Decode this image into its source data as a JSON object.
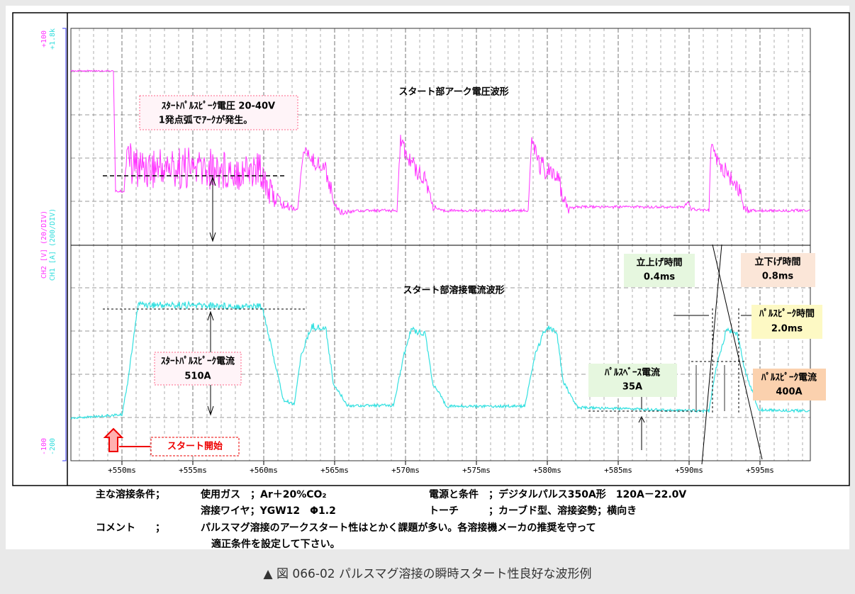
{
  "scope": {
    "ch2_top": "+100",
    "ch1_top": "+1.8k",
    "ch2_axis": "CH2 [V] (20/DIV)",
    "ch1_axis": "CH1 [A] (200/DIV)",
    "ch2_bottom": "-100",
    "ch1_bottom": "-200",
    "x_labels": [
      "+550ms",
      "+555ms",
      "+560ms",
      "+565ms",
      "+570ms",
      "+575ms",
      "+580ms",
      "+585ms",
      "+590ms",
      "+595ms"
    ]
  },
  "annotations": {
    "voltage_title": "スタート部アーク電圧波形",
    "current_title": "スタート部溶接電流波形",
    "start_peak_voltage": [
      "ｽﾀｰﾄﾊﾟﾙｽﾋﾟｰｸ電圧 20-40V",
      "1発点弧でｱｰｸが発生。"
    ],
    "start_peak_current": [
      "ｽﾀｰﾄﾊﾟﾙｽﾋﾟｰｸ電流",
      "510A"
    ],
    "start": "スタート開始",
    "rise_time": [
      "立上げ時間",
      "0.4ms"
    ],
    "fall_time": [
      "立下げ時間",
      "0.8ms"
    ],
    "peak_time": [
      "ﾊﾟﾙｽﾋﾟｰｸ時間",
      "2.0ms"
    ],
    "base_current": [
      "ﾊﾟﾙｽﾍﾞｰｽ電流",
      "35A"
    ],
    "peak_current": [
      "ﾊﾟﾙｽﾋﾟｰｸ電流",
      "400A"
    ]
  },
  "conditions": {
    "main_label": "主な溶接条件；",
    "gas": "使用ガス　；Ar＋20%CO₂",
    "power": "電源と条件　；デジタルパルス350A形　120A－22.0V",
    "wire": "溶接ワイヤ；YGW12　Φ1.2",
    "torch": "トーチ　　　；カーブド型、溶接姿勢；横向き",
    "comment_label": "コメント　　；",
    "comment": [
      "パルスマグ溶接のアークスタート性はとかく課題が多い。各溶接機メーカの推奨を守って",
      "適正条件を設定して下さい。"
    ]
  },
  "caption": "▲ 図 066-02 パルスマグ溶接の瞬時スタート性良好な波形例"
}
